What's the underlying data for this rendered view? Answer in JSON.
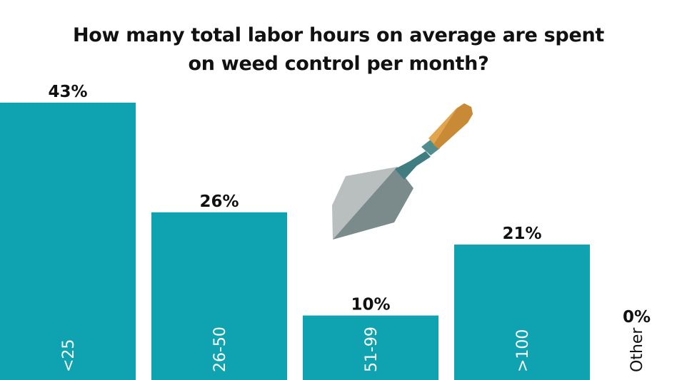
{
  "title_lines": [
    "How many total labor hours on average are spent",
    "on weed control per month?"
  ],
  "chart_data": {
    "type": "bar",
    "title": "How many total labor hours on average are spent on weed control per month?",
    "categories": [
      "<25",
      "26-50",
      "51-99",
      ">100",
      "Other"
    ],
    "values": [
      43,
      26,
      10,
      21,
      0
    ],
    "value_labels": [
      "43%",
      "26%",
      "10%",
      "21%",
      "0%"
    ],
    "unit": "%",
    "ylim": [
      0,
      43
    ],
    "grid": false,
    "legend": "none",
    "colors": {
      "bar": "#0fa3b1",
      "label_inside": "#ffffff",
      "text": "#111111"
    }
  },
  "decoration": {
    "icon": "trowel-icon"
  }
}
